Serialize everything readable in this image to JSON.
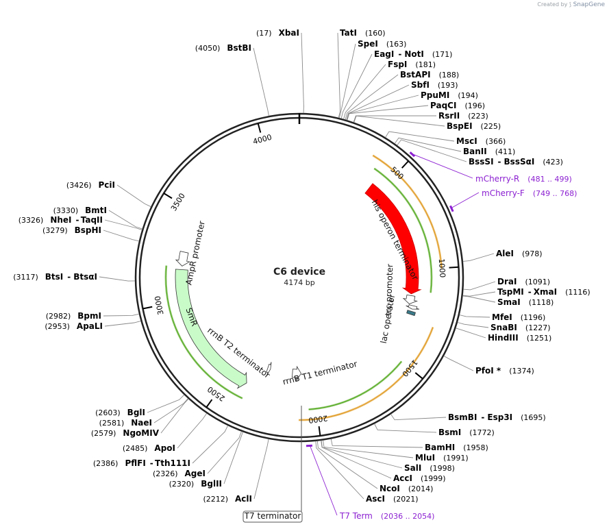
{
  "credit": {
    "prefix": "Created by",
    "brand": "SnapGene"
  },
  "plasmid": {
    "name": "C6 device",
    "size_label": "4174 bp",
    "length": 4174
  },
  "ticks": [
    500,
    1000,
    1500,
    2000,
    2500,
    3000,
    3500,
    4000
  ],
  "sites": [
    {
      "name": "XbaI",
      "pos_text": "(17)",
      "pos": 17,
      "side": "left"
    },
    {
      "name": "TatI",
      "pos_text": "(160)",
      "pos": 160,
      "side": "right"
    },
    {
      "name": "SpeI",
      "pos_text": "(163)",
      "pos": 163,
      "side": "right"
    },
    {
      "name": "EagI",
      "name2": "NotI",
      "pos_text": "(171)",
      "pos": 171,
      "side": "right"
    },
    {
      "name": "FspI",
      "pos_text": "(181)",
      "pos": 181,
      "side": "right"
    },
    {
      "name": "BstAPI",
      "pos_text": "(188)",
      "pos": 188,
      "side": "right"
    },
    {
      "name": "SbfI",
      "pos_text": "(193)",
      "pos": 193,
      "side": "right"
    },
    {
      "name": "PpuMI",
      "pos_text": "(194)",
      "pos": 194,
      "side": "right"
    },
    {
      "name": "PaqCI",
      "pos_text": "(196)",
      "pos": 196,
      "side": "right"
    },
    {
      "name": "RsrII",
      "pos_text": "(223)",
      "pos": 223,
      "side": "right"
    },
    {
      "name": "BspEI",
      "pos_text": "(225)",
      "pos": 225,
      "side": "right"
    },
    {
      "name": "MscI",
      "pos_text": "(366)",
      "pos": 366,
      "side": "right"
    },
    {
      "name": "BanII",
      "pos_text": "(411)",
      "pos": 411,
      "side": "right"
    },
    {
      "name": "BssSI",
      "name2": "BssSαI",
      "pos_text": "(423)",
      "pos": 423,
      "side": "right"
    },
    {
      "name": "AleI",
      "pos_text": "(978)",
      "pos": 978,
      "side": "right"
    },
    {
      "name": "DraI",
      "pos_text": "(1091)",
      "pos": 1091,
      "side": "right"
    },
    {
      "name": "TspMI",
      "name2": "XmaI",
      "pos_text": "(1116)",
      "pos": 1116,
      "side": "right"
    },
    {
      "name": "SmaI",
      "pos_text": "(1118)",
      "pos": 1118,
      "side": "right"
    },
    {
      "name": "MfeI",
      "pos_text": "(1196)",
      "pos": 1196,
      "side": "right"
    },
    {
      "name": "SnaBI",
      "pos_text": "(1227)",
      "pos": 1227,
      "side": "right"
    },
    {
      "name": "HindIII",
      "pos_text": "(1251)",
      "pos": 1251,
      "side": "right"
    },
    {
      "name": "PfoI *",
      "pos_text": "(1374)",
      "pos": 1374,
      "side": "right"
    },
    {
      "name": "BsmBI",
      "name2": "Esp3I",
      "pos_text": "(1695)",
      "pos": 1695,
      "side": "right"
    },
    {
      "name": "BsmI",
      "pos_text": "(1772)",
      "pos": 1772,
      "side": "right"
    },
    {
      "name": "BamHI",
      "pos_text": "(1958)",
      "pos": 1958,
      "side": "right"
    },
    {
      "name": "MluI",
      "pos_text": "(1991)",
      "pos": 1991,
      "side": "right"
    },
    {
      "name": "SalI",
      "pos_text": "(1998)",
      "pos": 1998,
      "side": "right"
    },
    {
      "name": "AccI",
      "pos_text": "(1999)",
      "pos": 1999,
      "side": "right"
    },
    {
      "name": "NcoI",
      "pos_text": "(2014)",
      "pos": 2014,
      "side": "right"
    },
    {
      "name": "AscI",
      "pos_text": "(2021)",
      "pos": 2021,
      "side": "right"
    },
    {
      "name": "AclI",
      "pos_text": "(2212)",
      "pos": 2212,
      "side": "left"
    },
    {
      "name": "BglII",
      "pos_text": "(2320)",
      "pos": 2320,
      "side": "left"
    },
    {
      "name": "AgeI",
      "pos_text": "(2326)",
      "pos": 2326,
      "side": "left"
    },
    {
      "name": "PflFI",
      "name2": "Tth111I",
      "pos_text": "(2386)",
      "pos": 2386,
      "side": "left"
    },
    {
      "name": "ApoI",
      "pos_text": "(2485)",
      "pos": 2485,
      "side": "left"
    },
    {
      "name": "NgoMIV",
      "pos_text": "(2579)",
      "pos": 2579,
      "side": "left"
    },
    {
      "name": "NaeI",
      "pos_text": "(2581)",
      "pos": 2581,
      "side": "left"
    },
    {
      "name": "BglI",
      "pos_text": "(2603)",
      "pos": 2603,
      "side": "left"
    },
    {
      "name": "ApaLI",
      "pos_text": "(2953)",
      "pos": 2953,
      "side": "left"
    },
    {
      "name": "BpmI",
      "pos_text": "(2982)",
      "pos": 2982,
      "side": "left"
    },
    {
      "name": "BtsI",
      "name2": "BtsαI",
      "pos_text": "(3117)",
      "pos": 3117,
      "side": "left"
    },
    {
      "name": "BspHI",
      "pos_text": "(3279)",
      "pos": 3279,
      "side": "left"
    },
    {
      "name": "NheI",
      "name2": "TaqII",
      "pos_text": "(3326)",
      "pos": 3326,
      "side": "left"
    },
    {
      "name": "BmtI",
      "pos_text": "(3330)",
      "pos": 3330,
      "side": "left"
    },
    {
      "name": "PciI",
      "pos_text": "(3426)",
      "pos": 3426,
      "side": "left"
    },
    {
      "name": "BstBI",
      "pos_text": "(4050)",
      "pos": 4050,
      "side": "left"
    }
  ],
  "primers": [
    {
      "name": "mCherry-R",
      "range_text": "(481 .. 499)",
      "start": 481,
      "end": 499
    },
    {
      "name": "mCherry-F",
      "range_text": "(749 .. 768)",
      "start": 749,
      "end": 768
    },
    {
      "name": "T7 Term",
      "range_text": "(2036 .. 2054)",
      "start": 2036,
      "end": 2054
    }
  ],
  "features": [
    {
      "name": "mCherry",
      "start": 440,
      "end": 1140,
      "radius": 165,
      "color": "#ff0000",
      "direction": "cw"
    },
    {
      "name": "his operon terminator",
      "start": 1150,
      "end": 1200,
      "radius": 165,
      "color": "#ffffff",
      "direction": "cw"
    },
    {
      "name": "trc promoter",
      "start": 1205,
      "end": 1225,
      "radius": 171,
      "color": "#ffffff",
      "direction": "cw"
    },
    {
      "name": "lac operator",
      "start": 1238,
      "end": 1256,
      "radius": 171,
      "color": "#3a7b8a",
      "direction": "none"
    },
    {
      "name": "rrnB T1 terminator",
      "start": 2075,
      "end": 2135,
      "radius": 140,
      "color": "#ffffff",
      "direction": "ccw"
    },
    {
      "name": "rrnB T2 terminator",
      "start": 2290,
      "end": 2310,
      "radius": 140,
      "color": "#ffffff",
      "direction": "ccw"
    },
    {
      "name": "SmR",
      "start": 2395,
      "end": 3175,
      "radius": 172,
      "color": "#c9fbc9",
      "direction": "ccw"
    },
    {
      "name": "AmpR promoter",
      "start": 3195,
      "end": 3275,
      "radius": 172,
      "color": "#ffffff",
      "direction": "ccw"
    },
    {
      "name": "T7 terminator",
      "start": 2060,
      "end": 2090,
      "radius": 0,
      "color": "#ffffff",
      "direction": "none"
    }
  ],
  "orfs": [
    {
      "start": 400,
      "end": 1120,
      "radius": 193,
      "color": "#55aa22"
    },
    {
      "start": 360,
      "end": 1000,
      "radius": 208,
      "color": "#e09a22"
    },
    {
      "start": 1500,
      "end": 2040,
      "radius": 193,
      "color": "#55aa22"
    },
    {
      "start": 1280,
      "end": 2090,
      "radius": 208,
      "color": "#e09a22"
    },
    {
      "start": 2380,
      "end": 3190,
      "radius": 195,
      "color": "#55aa22"
    }
  ]
}
